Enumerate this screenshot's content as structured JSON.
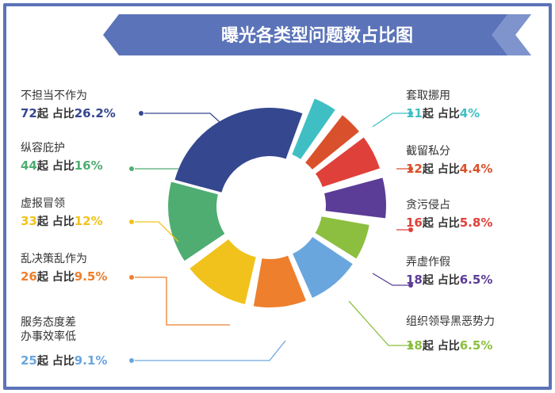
{
  "chart_data": {
    "type": "pie",
    "title": "曝光各类型问题数占比图",
    "unit_count": "起",
    "unit_share": "占比",
    "slices": [
      {
        "name": "不担当不作为",
        "count": 72,
        "percent": "26.2%",
        "color": "#35478f"
      },
      {
        "name": "套取挪用",
        "count": 11,
        "percent": "4%",
        "color": "#3fbfc4"
      },
      {
        "name": "截留私分",
        "count": 12,
        "percent": "4.4%",
        "color": "#d9512c"
      },
      {
        "name": "贪污侵占",
        "count": 16,
        "percent": "5.8%",
        "color": "#e0403a"
      },
      {
        "name": "弄虚作假",
        "count": 18,
        "percent": "6.5%",
        "color": "#5b3c96"
      },
      {
        "name": "组织领导黑恶势力",
        "count": 18,
        "percent": "6.5%",
        "color": "#8cbf3f"
      },
      {
        "name": "服务态度差\n办事效率低",
        "count": 25,
        "percent": "9.1%",
        "color": "#6aa6de"
      },
      {
        "name": "乱决策乱作为",
        "count": 26,
        "percent": "9.5%",
        "color": "#ee7f2d"
      },
      {
        "name": "虚报冒领",
        "count": 33,
        "percent": "12%",
        "color": "#f1c21b"
      },
      {
        "name": "纵容庇护",
        "count": 44,
        "percent": "16%",
        "color": "#4fad72"
      }
    ]
  }
}
